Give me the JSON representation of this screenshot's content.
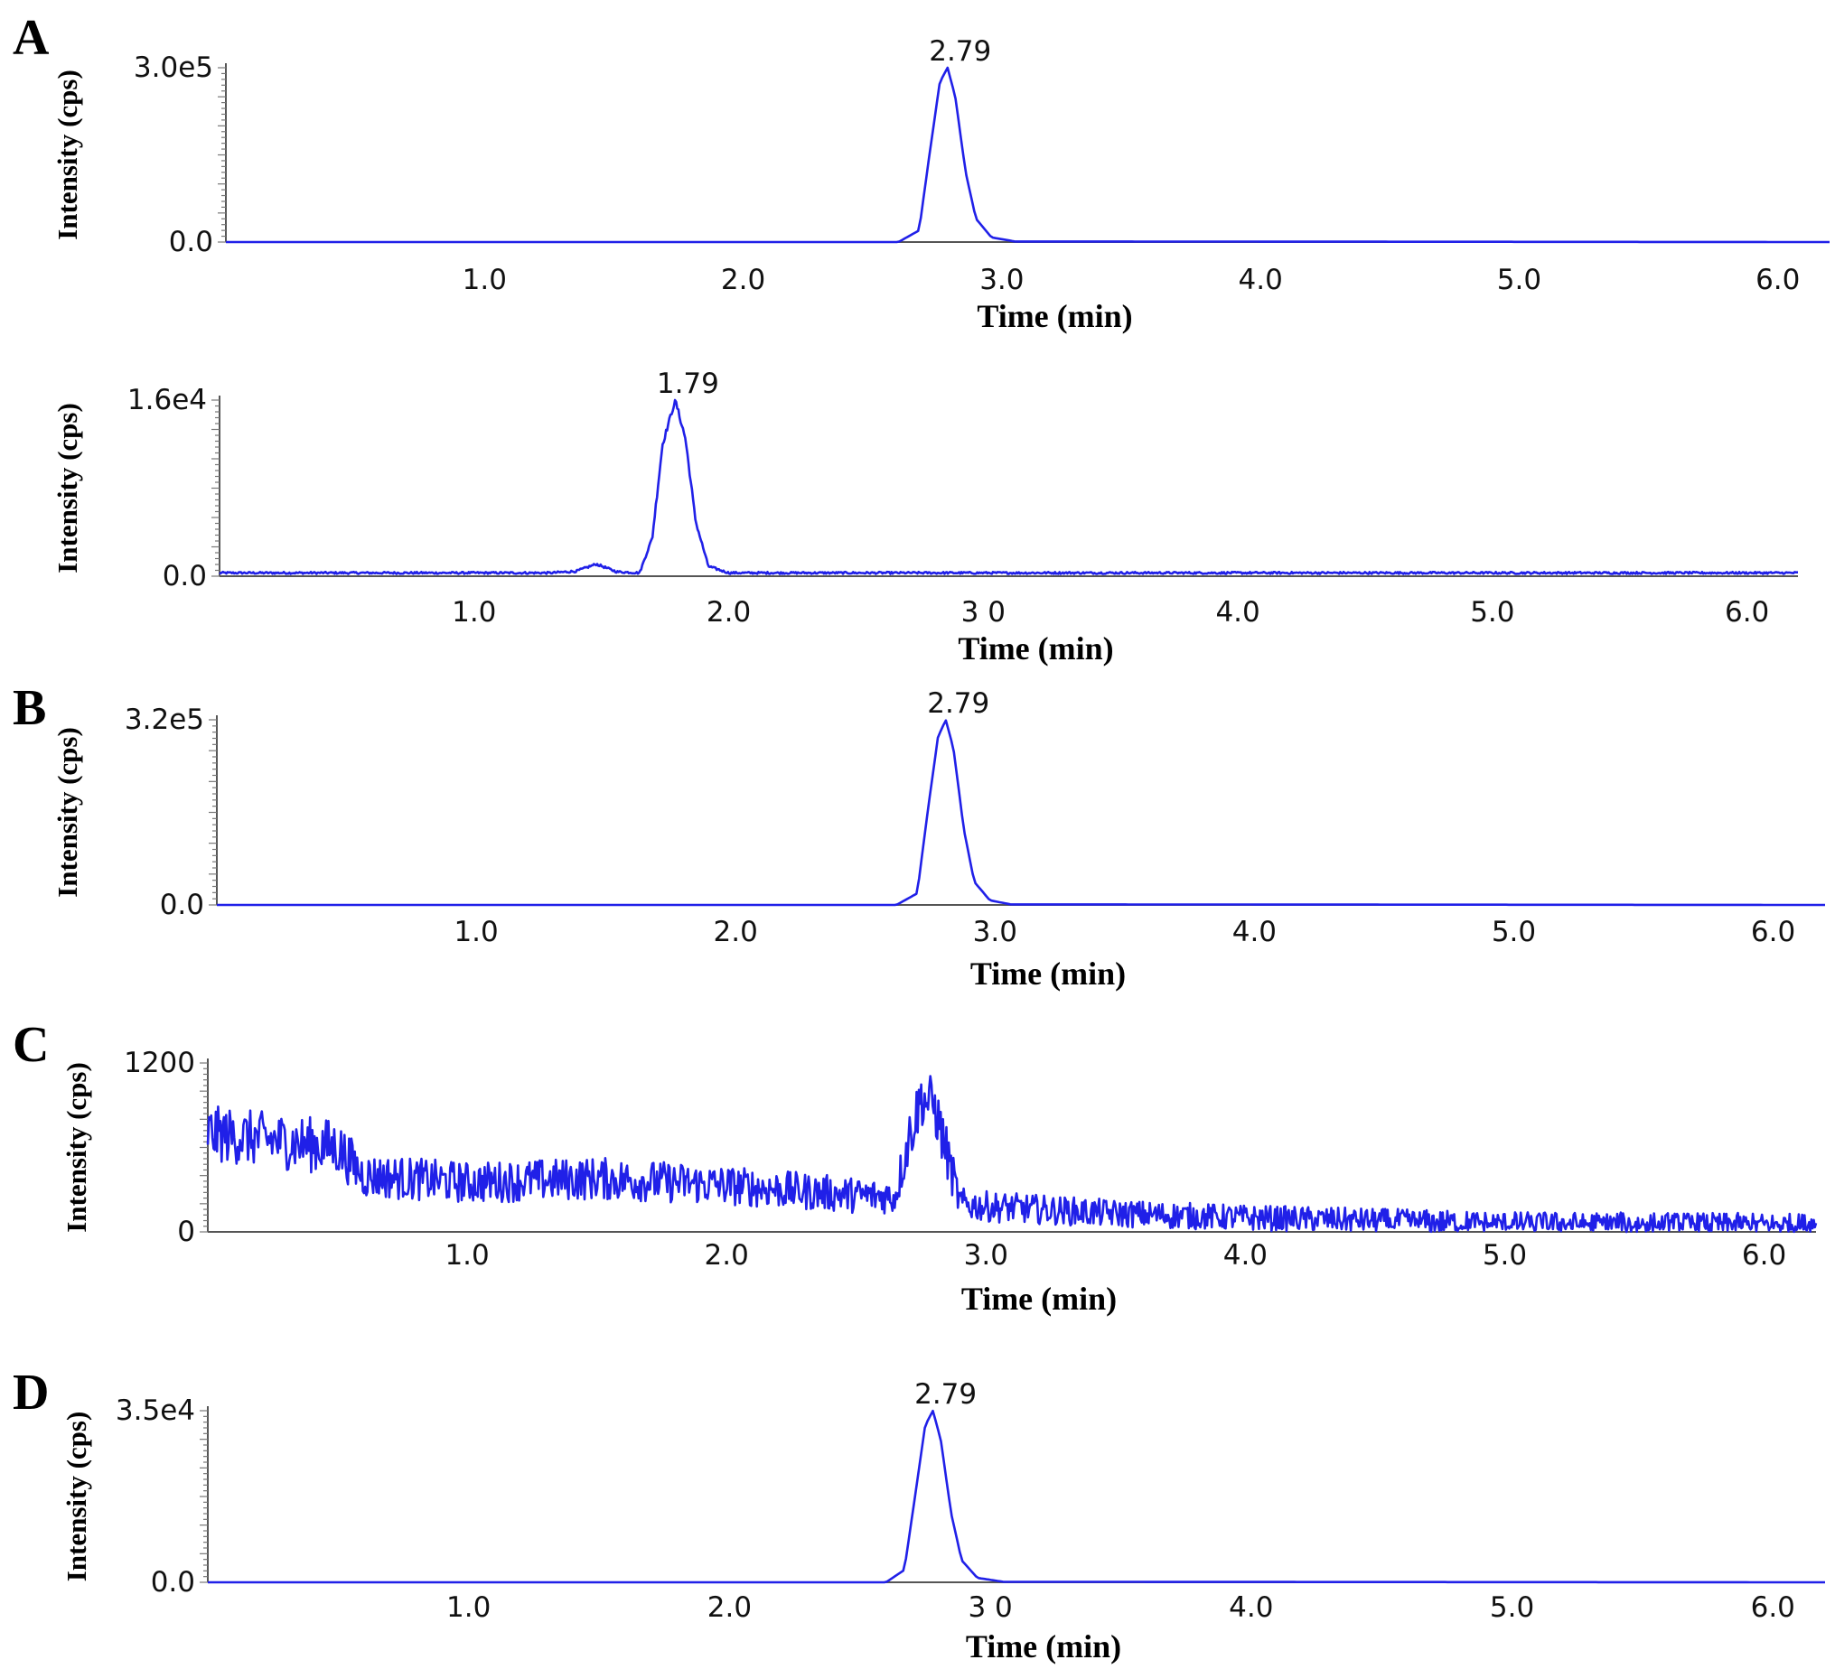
{
  "chart_data": [
    {
      "type": "line",
      "panel": "A",
      "title": "",
      "xlabel": "Time (min)",
      "ylabel": "Intensity (cps)",
      "xlim": [
        0,
        6.2
      ],
      "x_ticks": [
        "1.0",
        "2.0",
        "3.0",
        "4.0",
        "5.0",
        "6.0"
      ],
      "y_ticks": [
        "0.0",
        "3.0e5"
      ],
      "ylim": [
        0,
        300000
      ],
      "peak_label": "2.79",
      "color": "#2020e8",
      "series": [
        {
          "x": [
            0,
            2.6,
            2.68,
            2.72,
            2.76,
            2.79,
            2.82,
            2.86,
            2.9,
            2.96,
            3.05,
            6.2
          ],
          "y": [
            0,
            0,
            20000,
            150000,
            275000,
            300000,
            250000,
            120000,
            40000,
            8000,
            1000,
            0
          ]
        }
      ]
    },
    {
      "type": "line",
      "panel": "",
      "title": "",
      "xlabel": "Time (min)",
      "ylabel": "Intensity (cps)",
      "xlim": [
        0,
        6.2
      ],
      "x_ticks": [
        "1.0",
        "2.0",
        "3 0",
        "4.0",
        "5.0",
        "6.0"
      ],
      "y_ticks": [
        "0.0",
        "1.6e4"
      ],
      "ylim": [
        0,
        16000
      ],
      "peak_label": "1.79",
      "color": "#2020e8",
      "noise": 250,
      "series": [
        {
          "x": [
            0,
            1.3,
            1.4,
            1.48,
            1.56,
            1.65,
            1.7,
            1.74,
            1.79,
            1.83,
            1.87,
            1.92,
            2.0,
            6.2
          ],
          "y": [
            300,
            300,
            450,
            1100,
            400,
            300,
            3500,
            12000,
            16000,
            12500,
            5000,
            900,
            300,
            300
          ]
        }
      ]
    },
    {
      "type": "line",
      "panel": "B",
      "title": "",
      "xlabel": "Time (min)",
      "ylabel": "Intensity (cps)",
      "xlim": [
        0,
        6.2
      ],
      "x_ticks": [
        "1.0",
        "2.0",
        "3.0",
        "4.0",
        "5.0",
        "6.0"
      ],
      "y_ticks": [
        "0.0",
        "3.2e5"
      ],
      "ylim": [
        0,
        320000
      ],
      "peak_label": "2.79",
      "color": "#2020e8",
      "series": [
        {
          "x": [
            0,
            2.62,
            2.7,
            2.74,
            2.78,
            2.81,
            2.84,
            2.88,
            2.92,
            2.98,
            3.06,
            6.2
          ],
          "y": [
            0,
            0,
            20000,
            160000,
            290000,
            320000,
            270000,
            130000,
            40000,
            8000,
            1000,
            0
          ]
        }
      ]
    },
    {
      "type": "line",
      "panel": "C",
      "title": "",
      "xlabel": "Time (min)",
      "ylabel": "Intensity (cps)",
      "xlim": [
        0,
        6.2
      ],
      "x_ticks": [
        "1.0",
        "2.0",
        "3.0",
        "4.0",
        "5.0",
        "6.0"
      ],
      "y_ticks": [
        "0",
        "1200"
      ],
      "ylim": [
        0,
        1200
      ],
      "peak_label": "",
      "color": "#2020e8",
      "noise": 200,
      "series": [
        {
          "x": [
            0,
            0.5,
            0.6,
            1.0,
            1.5,
            2.0,
            2.5,
            2.65,
            2.7,
            2.75,
            2.8,
            2.85,
            2.9,
            3.0,
            3.5,
            4.0,
            5.0,
            6.2
          ],
          "y": [
            700,
            600,
            400,
            350,
            380,
            330,
            260,
            250,
            650,
            950,
            900,
            550,
            200,
            180,
            130,
            100,
            60,
            50
          ]
        }
      ]
    },
    {
      "type": "line",
      "panel": "D",
      "title": "",
      "xlabel": "Time (min)",
      "ylabel": "Intensity (cps)",
      "xlim": [
        0,
        6.2
      ],
      "x_ticks": [
        "1.0",
        "2.0",
        "3 0",
        "4.0",
        "5.0",
        "6.0"
      ],
      "y_ticks": [
        "0.0",
        "3.5e4"
      ],
      "ylim": [
        0,
        35000
      ],
      "peak_label": "2.79",
      "color": "#2020e8",
      "series": [
        {
          "x": [
            0,
            2.6,
            2.67,
            2.71,
            2.75,
            2.78,
            2.81,
            2.85,
            2.89,
            2.95,
            3.05,
            6.2
          ],
          "y": [
            0,
            0,
            2500,
            17000,
            32000,
            35000,
            29000,
            14000,
            4500,
            900,
            100,
            0
          ]
        }
      ]
    }
  ]
}
